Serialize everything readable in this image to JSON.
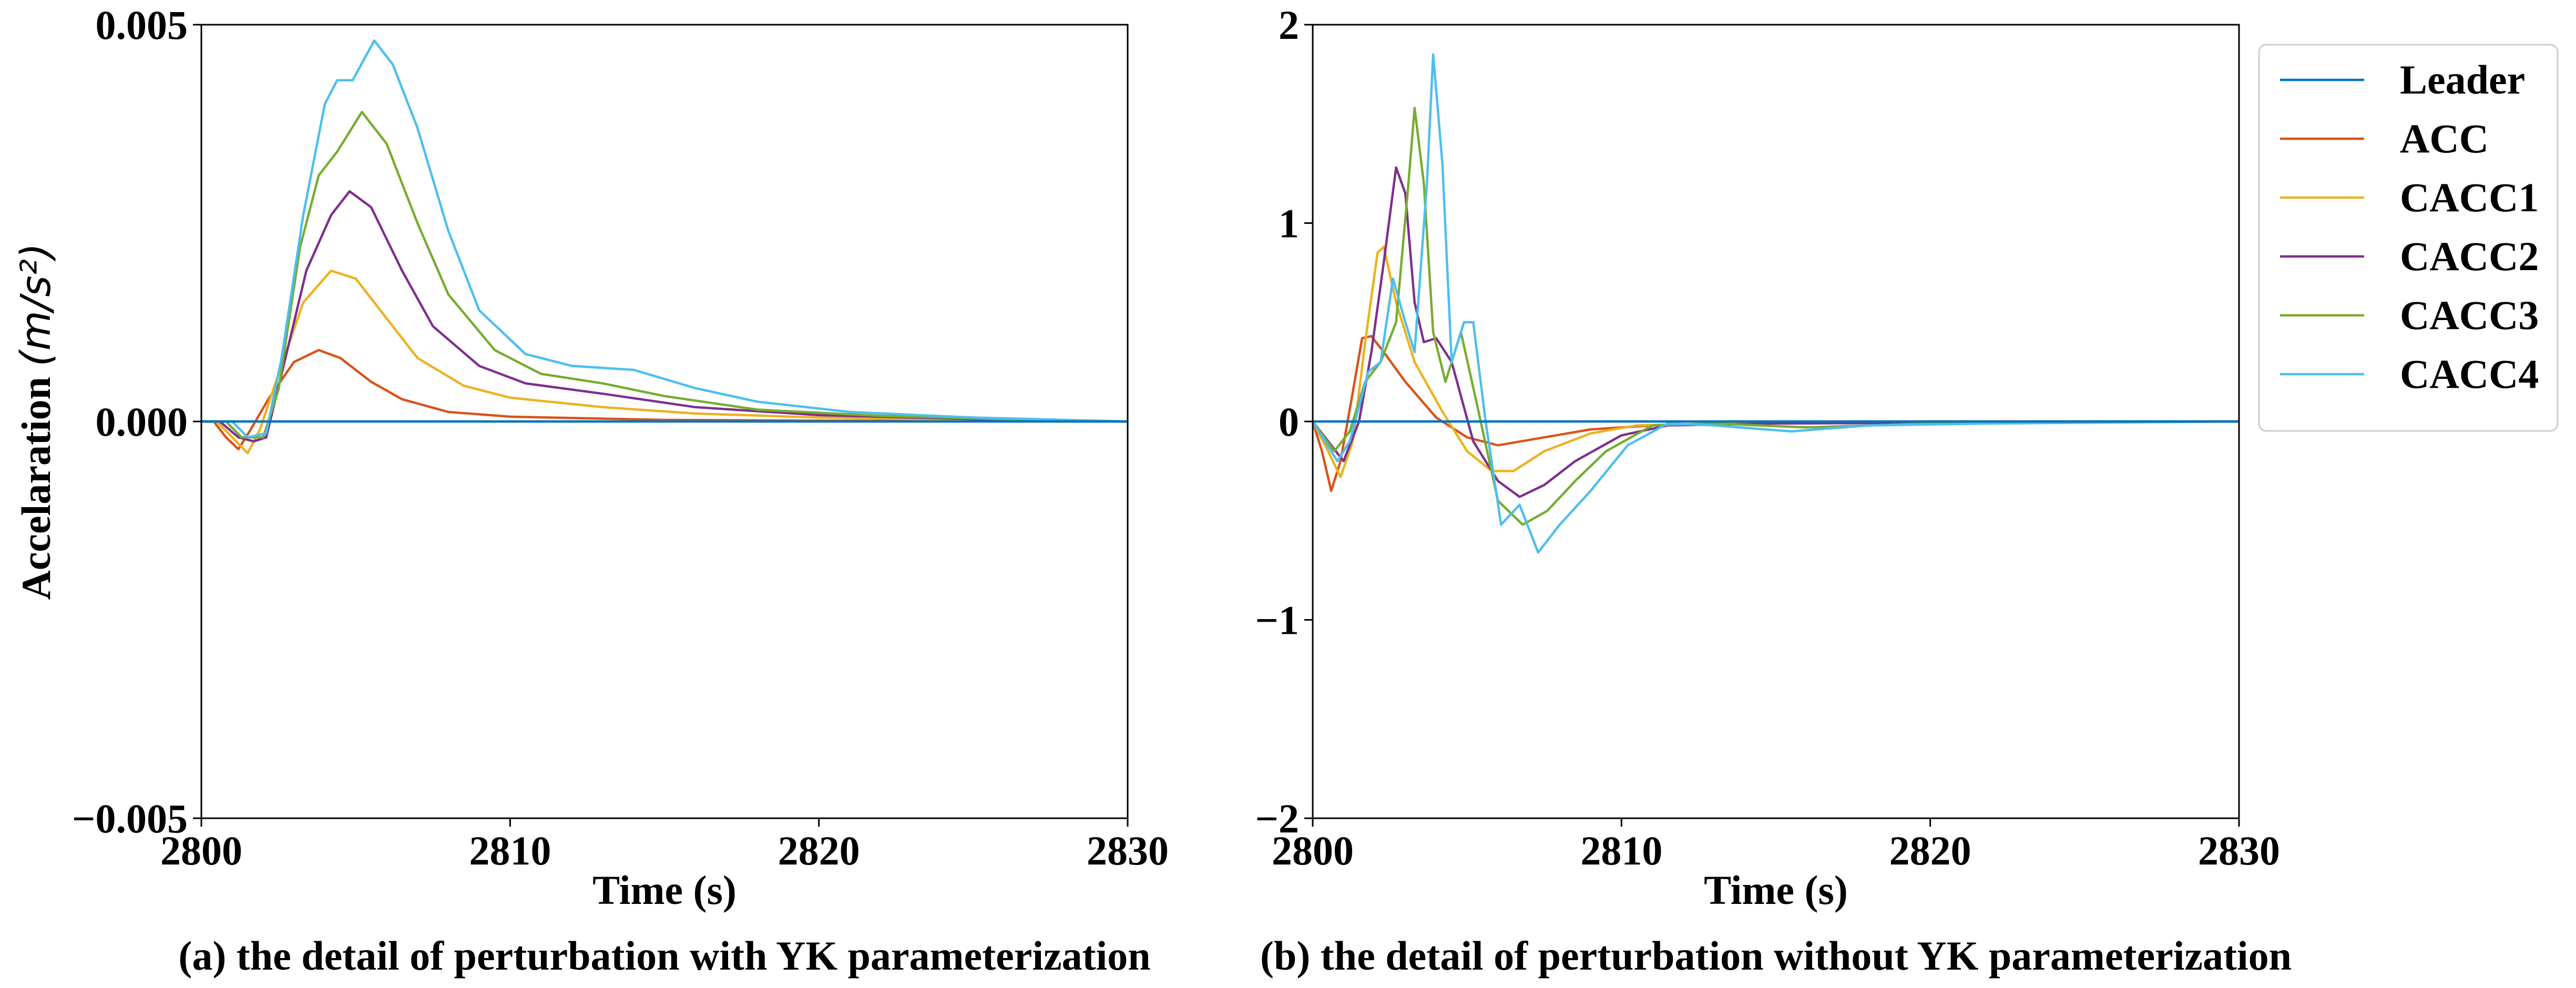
{
  "chart_data": [
    {
      "type": "line",
      "ylabel": "Accelaration",
      "ylabel_unit": "(m/s²)",
      "xlabel": "Time (s)",
      "caption": "(a) the detail of perturbation with YK parameterization",
      "xlim": [
        2800,
        2830
      ],
      "ylim": [
        -0.005,
        0.005
      ],
      "xticks": [
        2800,
        2810,
        2820,
        2830
      ],
      "xtick_labels": [
        "2800",
        "2810",
        "2820",
        "2830"
      ],
      "yticks": [
        -0.005,
        0.0,
        0.005
      ],
      "ytick_labels": [
        "−0.005",
        "0.000",
        "0.005"
      ],
      "series": [
        {
          "name": "Leader",
          "color": "#0072BD",
          "points": [
            [
              2800,
              0
            ],
            [
              2830,
              0
            ]
          ]
        },
        {
          "name": "ACC",
          "color": "#D95319",
          "points": [
            [
              2800,
              0
            ],
            [
              2800.4,
              0
            ],
            [
              2800.8,
              -0.0002
            ],
            [
              2801.2,
              -0.00035
            ],
            [
              2801.6,
              -0.0001
            ],
            [
              2802.2,
              0.0003
            ],
            [
              2803,
              0.00075
            ],
            [
              2803.8,
              0.0009
            ],
            [
              2804.5,
              0.0008
            ],
            [
              2805.5,
              0.0005
            ],
            [
              2806.5,
              0.00028
            ],
            [
              2808,
              0.00012
            ],
            [
              2810,
              6e-05
            ],
            [
              2815,
              2e-05
            ],
            [
              2820,
              1e-05
            ],
            [
              2830,
              0
            ]
          ]
        },
        {
          "name": "CACC1",
          "color": "#EDB120",
          "points": [
            [
              2800,
              0
            ],
            [
              2800.5,
              0
            ],
            [
              2801,
              -0.0002
            ],
            [
              2801.5,
              -0.0004
            ],
            [
              2801.9,
              -0.0001
            ],
            [
              2802.5,
              0.0006
            ],
            [
              2803.3,
              0.0015
            ],
            [
              2804.2,
              0.0019
            ],
            [
              2805,
              0.0018
            ],
            [
              2806,
              0.0013
            ],
            [
              2807,
              0.0008
            ],
            [
              2808.5,
              0.00045
            ],
            [
              2810,
              0.0003
            ],
            [
              2813,
              0.00018
            ],
            [
              2816,
              0.0001
            ],
            [
              2820,
              5e-05
            ],
            [
              2825,
              2e-05
            ],
            [
              2830,
              0
            ]
          ]
        },
        {
          "name": "CACC2",
          "color": "#7E2F8E",
          "points": [
            [
              2800,
              0
            ],
            [
              2800.6,
              0
            ],
            [
              2801.2,
              -0.0002
            ],
            [
              2801.7,
              -0.00025
            ],
            [
              2802.1,
              -0.0002
            ],
            [
              2802.6,
              0.0006
            ],
            [
              2803.4,
              0.0019
            ],
            [
              2804.2,
              0.0026
            ],
            [
              2804.8,
              0.0029
            ],
            [
              2805.5,
              0.0027
            ],
            [
              2806.5,
              0.0019
            ],
            [
              2807.5,
              0.0012
            ],
            [
              2809,
              0.0007
            ],
            [
              2810.5,
              0.00048
            ],
            [
              2813,
              0.00035
            ],
            [
              2816,
              0.00018
            ],
            [
              2820,
              8e-05
            ],
            [
              2825,
              3e-05
            ],
            [
              2830,
              0
            ]
          ]
        },
        {
          "name": "CACC3",
          "color": "#77AC30",
          "points": [
            [
              2800,
              0
            ],
            [
              2800.8,
              0
            ],
            [
              2801.3,
              -0.0002
            ],
            [
              2802,
              -0.0002
            ],
            [
              2802.5,
              0.0004
            ],
            [
              2803.2,
              0.0022
            ],
            [
              2803.8,
              0.0031
            ],
            [
              2804.4,
              0.0034
            ],
            [
              2805.2,
              0.0039
            ],
            [
              2806,
              0.0035
            ],
            [
              2807,
              0.0025
            ],
            [
              2808,
              0.0016
            ],
            [
              2809.5,
              0.0009
            ],
            [
              2811,
              0.0006
            ],
            [
              2813,
              0.00048
            ],
            [
              2815,
              0.00032
            ],
            [
              2818,
              0.00015
            ],
            [
              2822,
              7e-05
            ],
            [
              2826,
              3e-05
            ],
            [
              2830,
              0
            ]
          ]
        },
        {
          "name": "CACC4",
          "color": "#4DBEEE",
          "points": [
            [
              2800,
              0
            ],
            [
              2801,
              0
            ],
            [
              2801.5,
              -0.0002
            ],
            [
              2802.1,
              -0.00015
            ],
            [
              2802.6,
              0.0008
            ],
            [
              2803.3,
              0.0026
            ],
            [
              2804,
              0.004
            ],
            [
              2804.4,
              0.0043
            ],
            [
              2804.9,
              0.0043
            ],
            [
              2805.6,
              0.0048
            ],
            [
              2806.2,
              0.0045
            ],
            [
              2807,
              0.0037
            ],
            [
              2808,
              0.0024
            ],
            [
              2809,
              0.0014
            ],
            [
              2810.5,
              0.00085
            ],
            [
              2812,
              0.0007
            ],
            [
              2814,
              0.00065
            ],
            [
              2816,
              0.00042
            ],
            [
              2818,
              0.00025
            ],
            [
              2821,
              0.00012
            ],
            [
              2825,
              5e-05
            ],
            [
              2830,
              0
            ]
          ]
        }
      ]
    },
    {
      "type": "line",
      "xlabel": "Time (s)",
      "caption": "(b) the detail of perturbation without YK parameterization",
      "xlim": [
        2800,
        2830
      ],
      "ylim": [
        -2,
        2
      ],
      "xticks": [
        2800,
        2810,
        2820,
        2830
      ],
      "xtick_labels": [
        "2800",
        "2810",
        "2820",
        "2830"
      ],
      "yticks": [
        -2,
        -1,
        0,
        1,
        2
      ],
      "ytick_labels": [
        "−2",
        "−1",
        "0",
        "1",
        "2"
      ],
      "series": [
        {
          "name": "Leader",
          "color": "#0072BD",
          "points": [
            [
              2800,
              0
            ],
            [
              2830,
              0
            ]
          ]
        },
        {
          "name": "ACC",
          "color": "#D95319",
          "points": [
            [
              2800,
              0
            ],
            [
              2800.3,
              -0.15
            ],
            [
              2800.6,
              -0.35
            ],
            [
              2800.9,
              -0.2
            ],
            [
              2801.3,
              0.15
            ],
            [
              2801.6,
              0.42
            ],
            [
              2801.9,
              0.43
            ],
            [
              2802.3,
              0.35
            ],
            [
              2803,
              0.2
            ],
            [
              2804,
              0.02
            ],
            [
              2805,
              -0.08
            ],
            [
              2806,
              -0.12
            ],
            [
              2807.5,
              -0.08
            ],
            [
              2809,
              -0.04
            ],
            [
              2811,
              -0.02
            ],
            [
              2815,
              -0.01
            ],
            [
              2820,
              0
            ],
            [
              2830,
              0
            ]
          ]
        },
        {
          "name": "CACC1",
          "color": "#EDB120",
          "points": [
            [
              2800,
              0
            ],
            [
              2800.5,
              -0.15
            ],
            [
              2800.9,
              -0.28
            ],
            [
              2801.3,
              -0.1
            ],
            [
              2801.7,
              0.4
            ],
            [
              2802.1,
              0.85
            ],
            [
              2802.3,
              0.88
            ],
            [
              2802.7,
              0.6
            ],
            [
              2803.3,
              0.3
            ],
            [
              2804.2,
              0.05
            ],
            [
              2805,
              -0.15
            ],
            [
              2805.8,
              -0.25
            ],
            [
              2806.5,
              -0.25
            ],
            [
              2807.5,
              -0.15
            ],
            [
              2809,
              -0.06
            ],
            [
              2810.5,
              -0.02
            ],
            [
              2813,
              -0.01
            ],
            [
              2820,
              0
            ],
            [
              2830,
              0
            ]
          ]
        },
        {
          "name": "CACC2",
          "color": "#7E2F8E",
          "points": [
            [
              2800,
              0
            ],
            [
              2800.5,
              -0.1
            ],
            [
              2801,
              -0.2
            ],
            [
              2801.5,
              0.0
            ],
            [
              2801.9,
              0.35
            ],
            [
              2802.3,
              0.8
            ],
            [
              2802.7,
              1.28
            ],
            [
              2803,
              1.15
            ],
            [
              2803.3,
              0.6
            ],
            [
              2803.6,
              0.4
            ],
            [
              2804,
              0.42
            ],
            [
              2804.5,
              0.3
            ],
            [
              2805.2,
              -0.1
            ],
            [
              2806,
              -0.3
            ],
            [
              2806.7,
              -0.38
            ],
            [
              2807.5,
              -0.32
            ],
            [
              2808.5,
              -0.2
            ],
            [
              2810,
              -0.07
            ],
            [
              2811.5,
              -0.02
            ],
            [
              2815,
              -0.01
            ],
            [
              2830,
              0
            ]
          ]
        },
        {
          "name": "CACC3",
          "color": "#77AC30",
          "points": [
            [
              2800,
              0
            ],
            [
              2800.7,
              -0.15
            ],
            [
              2801.2,
              -0.05
            ],
            [
              2801.7,
              0.2
            ],
            [
              2802.2,
              0.3
            ],
            [
              2802.7,
              0.5
            ],
            [
              2803.1,
              1.2
            ],
            [
              2803.3,
              1.58
            ],
            [
              2803.6,
              1.2
            ],
            [
              2803.9,
              0.45
            ],
            [
              2804.3,
              0.2
            ],
            [
              2804.8,
              0.45
            ],
            [
              2805.3,
              0.1
            ],
            [
              2806,
              -0.4
            ],
            [
              2806.8,
              -0.52
            ],
            [
              2807.6,
              -0.45
            ],
            [
              2808.5,
              -0.3
            ],
            [
              2809.5,
              -0.15
            ],
            [
              2811,
              -0.02
            ],
            [
              2813,
              -0.01
            ],
            [
              2816,
              -0.03
            ],
            [
              2820,
              -0.01
            ],
            [
              2830,
              0
            ]
          ]
        },
        {
          "name": "CACC4",
          "color": "#4DBEEE",
          "points": [
            [
              2800,
              0
            ],
            [
              2800.8,
              -0.2
            ],
            [
              2801.2,
              -0.1
            ],
            [
              2801.8,
              0.25
            ],
            [
              2802.2,
              0.3
            ],
            [
              2802.6,
              0.72
            ],
            [
              2803,
              0.5
            ],
            [
              2803.3,
              0.35
            ],
            [
              2803.7,
              1.2
            ],
            [
              2803.9,
              1.85
            ],
            [
              2804.2,
              1.3
            ],
            [
              2804.5,
              0.3
            ],
            [
              2804.9,
              0.5
            ],
            [
              2805.2,
              0.5
            ],
            [
              2805.6,
              0.0
            ],
            [
              2806.1,
              -0.52
            ],
            [
              2806.7,
              -0.42
            ],
            [
              2807.3,
              -0.66
            ],
            [
              2808,
              -0.52
            ],
            [
              2809,
              -0.35
            ],
            [
              2810.2,
              -0.12
            ],
            [
              2811.5,
              -0.01
            ],
            [
              2813,
              -0.02
            ],
            [
              2815.5,
              -0.05
            ],
            [
              2818,
              -0.02
            ],
            [
              2822,
              -0.01
            ],
            [
              2830,
              0
            ]
          ]
        }
      ]
    }
  ],
  "legend": {
    "placement": "top-right, outside panel (b)",
    "entries": [
      {
        "label": "Leader",
        "color": "#0072BD"
      },
      {
        "label": "ACC",
        "color": "#D95319"
      },
      {
        "label": "CACC1",
        "color": "#EDB120"
      },
      {
        "label": "CACC2",
        "color": "#7E2F8E"
      },
      {
        "label": "CACC3",
        "color": "#77AC30"
      },
      {
        "label": "CACC4",
        "color": "#4DBEEE"
      }
    ]
  }
}
